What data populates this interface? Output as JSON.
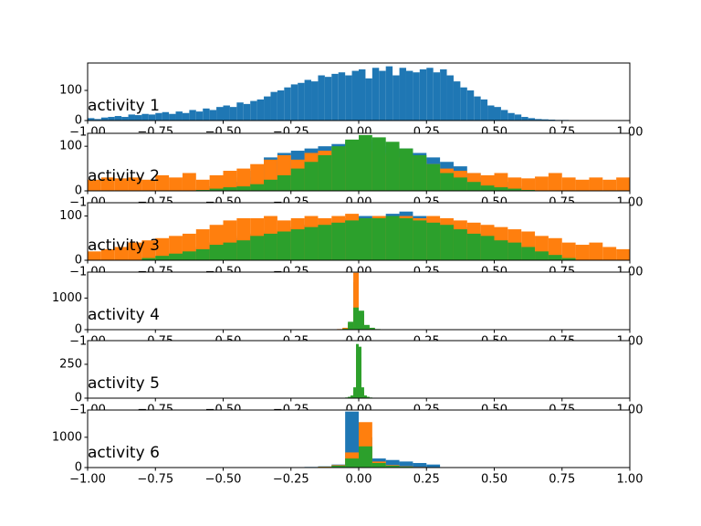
{
  "chart_data": [
    {
      "type": "histogram",
      "annotation": "activity 1",
      "xlim": [
        -1,
        1
      ],
      "ylim": [
        0,
        191
      ],
      "xticks": [
        {
          "value": -1,
          "label": "−1.00"
        },
        {
          "value": -0.75,
          "label": "−0.75"
        },
        {
          "value": -0.5,
          "label": "−0.50"
        },
        {
          "value": -0.25,
          "label": "−0.25"
        },
        {
          "value": 0,
          "label": "0.00"
        },
        {
          "value": 0.25,
          "label": "0.25"
        },
        {
          "value": 0.5,
          "label": "0.50"
        },
        {
          "value": 0.75,
          "label": "0.75"
        },
        {
          "value": 1,
          "label": "1.00"
        }
      ],
      "yticks": [
        0,
        100
      ],
      "bins": [
        -1,
        -0.975,
        -0.95,
        -0.925,
        -0.9,
        -0.875,
        -0.85,
        -0.825,
        -0.8,
        -0.775,
        -0.75,
        -0.725,
        -0.7,
        -0.675,
        -0.65,
        -0.625,
        -0.6,
        -0.575,
        -0.55,
        -0.525,
        -0.5,
        -0.475,
        -0.45,
        -0.425,
        -0.4,
        -0.375,
        -0.35,
        -0.325,
        -0.3,
        -0.275,
        -0.25,
        -0.225,
        -0.2,
        -0.175,
        -0.15,
        -0.125,
        -0.1,
        -0.075,
        -0.05,
        -0.025,
        0,
        0.025,
        0.05,
        0.075,
        0.1,
        0.125,
        0.15,
        0.175,
        0.2,
        0.225,
        0.25,
        0.275,
        0.3,
        0.325,
        0.35,
        0.375,
        0.4,
        0.425,
        0.45,
        0.475,
        0.5,
        0.525,
        0.55,
        0.575,
        0.6,
        0.625,
        0.65,
        0.675,
        0.7,
        0.725,
        0.75,
        0.775,
        0.8
      ],
      "series": [
        {
          "color": "#1f77b4",
          "values": [
            8,
            5,
            10,
            12,
            15,
            12,
            20,
            18,
            22,
            20,
            25,
            28,
            22,
            30,
            25,
            35,
            30,
            40,
            35,
            45,
            50,
            45,
            60,
            55,
            65,
            70,
            80,
            95,
            100,
            110,
            120,
            125,
            135,
            130,
            150,
            145,
            155,
            160,
            150,
            165,
            170,
            140,
            175,
            165,
            180,
            150,
            175,
            165,
            160,
            170,
            175,
            160,
            170,
            150,
            130,
            110,
            100,
            80,
            70,
            50,
            45,
            35,
            25,
            20,
            12,
            8,
            5,
            4,
            3,
            2,
            2,
            1
          ]
        }
      ]
    },
    {
      "type": "histogram",
      "annotation": "activity 2",
      "xlim": [
        -1,
        1
      ],
      "ylim": [
        0,
        129
      ],
      "xticks": [
        {
          "value": -1,
          "label": "−1.00"
        },
        {
          "value": -0.75,
          "label": "−0.75"
        },
        {
          "value": -0.5,
          "label": "−0.50"
        },
        {
          "value": -0.25,
          "label": "−0.25"
        },
        {
          "value": 0,
          "label": "0.00"
        },
        {
          "value": 0.25,
          "label": "0.25"
        },
        {
          "value": 0.5,
          "label": "0.50"
        },
        {
          "value": 0.75,
          "label": "0.75"
        },
        {
          "value": 1,
          "label": "1.00"
        }
      ],
      "yticks": [
        0,
        100
      ],
      "bins": [
        -1,
        -0.95,
        -0.9,
        -0.85,
        -0.8,
        -0.75,
        -0.7,
        -0.65,
        -0.6,
        -0.55,
        -0.5,
        -0.45,
        -0.4,
        -0.35,
        -0.3,
        -0.25,
        -0.2,
        -0.15,
        -0.1,
        -0.05,
        0,
        0.05,
        0.1,
        0.15,
        0.2,
        0.25,
        0.3,
        0.35,
        0.4,
        0.45,
        0.5,
        0.55,
        0.6,
        0.65,
        0.7,
        0.75,
        0.8,
        0.85,
        0.9,
        0.95,
        1
      ],
      "series": [
        {
          "color": "#1f77b4",
          "values": [
            0,
            0,
            0,
            0,
            0,
            0,
            0,
            0,
            5,
            10,
            20,
            30,
            45,
            75,
            85,
            90,
            95,
            100,
            105,
            110,
            115,
            110,
            100,
            95,
            85,
            75,
            65,
            55,
            40,
            30,
            20,
            10,
            5,
            0,
            0,
            0,
            0,
            0,
            0,
            0
          ]
        },
        {
          "color": "#ff7f0e",
          "values": [
            25,
            30,
            28,
            30,
            25,
            35,
            30,
            40,
            25,
            35,
            45,
            50,
            60,
            70,
            80,
            70,
            85,
            90,
            95,
            100,
            90,
            85,
            80,
            75,
            70,
            60,
            50,
            45,
            40,
            35,
            40,
            30,
            28,
            32,
            40,
            30,
            25,
            30,
            25,
            30
          ]
        },
        {
          "color": "#2ca02c",
          "values": [
            0,
            0,
            0,
            0,
            0,
            0,
            0,
            0,
            2,
            5,
            8,
            10,
            15,
            25,
            35,
            50,
            65,
            80,
            100,
            115,
            125,
            120,
            110,
            95,
            80,
            60,
            40,
            30,
            20,
            12,
            8,
            5,
            2,
            0,
            0,
            0,
            0,
            0,
            0,
            0
          ]
        }
      ]
    },
    {
      "type": "histogram",
      "annotation": "activity 3",
      "xlim": [
        -1,
        1
      ],
      "ylim": [
        0,
        130
      ],
      "xticks": [
        {
          "value": -1,
          "label": "−1.00"
        },
        {
          "value": -0.75,
          "label": "−0.75"
        },
        {
          "value": -0.5,
          "label": "−0.50"
        },
        {
          "value": -0.25,
          "label": "−0.25"
        },
        {
          "value": 0,
          "label": "0.00"
        },
        {
          "value": 0.25,
          "label": "0.25"
        },
        {
          "value": 0.5,
          "label": "0.50"
        },
        {
          "value": 0.75,
          "label": "0.75"
        },
        {
          "value": 1,
          "label": "1.00"
        }
      ],
      "yticks": [
        0,
        100
      ],
      "bins": [
        -1,
        -0.95,
        -0.9,
        -0.85,
        -0.8,
        -0.75,
        -0.7,
        -0.65,
        -0.6,
        -0.55,
        -0.5,
        -0.45,
        -0.4,
        -0.35,
        -0.3,
        -0.25,
        -0.2,
        -0.15,
        -0.1,
        -0.05,
        0,
        0.05,
        0.1,
        0.15,
        0.2,
        0.25,
        0.3,
        0.35,
        0.4,
        0.45,
        0.5,
        0.55,
        0.6,
        0.65,
        0.7,
        0.75,
        0.8,
        0.85,
        0.9,
        0.95,
        1
      ],
      "series": [
        {
          "color": "#1f77b4",
          "values": [
            0,
            0,
            0,
            0,
            0,
            0,
            0,
            0,
            30,
            40,
            50,
            55,
            60,
            65,
            70,
            75,
            80,
            85,
            90,
            95,
            100,
            100,
            105,
            110,
            100,
            95,
            85,
            75,
            65,
            55,
            45,
            35,
            25,
            0,
            0,
            0,
            0,
            0,
            0,
            0
          ]
        },
        {
          "color": "#ff7f0e",
          "values": [
            20,
            25,
            30,
            40,
            45,
            50,
            55,
            60,
            70,
            80,
            90,
            95,
            95,
            100,
            90,
            95,
            100,
            95,
            100,
            105,
            95,
            100,
            95,
            100,
            95,
            100,
            95,
            90,
            85,
            80,
            75,
            70,
            65,
            55,
            50,
            40,
            35,
            40,
            30,
            25
          ]
        },
        {
          "color": "#2ca02c",
          "values": [
            0,
            0,
            0,
            0,
            5,
            10,
            15,
            20,
            25,
            35,
            40,
            45,
            55,
            60,
            65,
            70,
            75,
            80,
            85,
            90,
            95,
            95,
            100,
            95,
            90,
            85,
            80,
            70,
            60,
            55,
            45,
            40,
            30,
            20,
            12,
            5,
            0,
            0,
            0,
            0
          ]
        }
      ]
    },
    {
      "type": "histogram",
      "annotation": "activity 4",
      "xlim": [
        -1,
        1
      ],
      "ylim": [
        0,
        1820
      ],
      "xticks": [
        {
          "value": -1,
          "label": "−1.00"
        },
        {
          "value": -0.75,
          "label": "−0.75"
        },
        {
          "value": -0.5,
          "label": "−0.50"
        },
        {
          "value": -0.25,
          "label": "−0.25"
        },
        {
          "value": 0,
          "label": "0.00"
        },
        {
          "value": 0.25,
          "label": "0.25"
        },
        {
          "value": 0.5,
          "label": "0.50"
        },
        {
          "value": 0.75,
          "label": "0.75"
        },
        {
          "value": 1,
          "label": "1.00"
        }
      ],
      "yticks": [
        0,
        1000
      ],
      "bins": [
        -0.1,
        -0.08,
        -0.06,
        -0.04,
        -0.02,
        0,
        0.02,
        0.04,
        0.06,
        0.08,
        0.1
      ],
      "series": [
        {
          "color": "#1f77b4",
          "values": [
            5,
            10,
            20,
            150,
            1500,
            500,
            50,
            20,
            10,
            5
          ]
        },
        {
          "color": "#ff7f0e",
          "values": [
            10,
            20,
            60,
            200,
            1800,
            400,
            100,
            30,
            10,
            5
          ]
        },
        {
          "color": "#2ca02c",
          "values": [
            5,
            10,
            30,
            250,
            700,
            600,
            150,
            60,
            20,
            5
          ]
        }
      ]
    },
    {
      "type": "histogram",
      "annotation": "activity 5",
      "xlim": [
        -1,
        1
      ],
      "ylim": [
        0,
        425
      ],
      "xticks": [
        {
          "value": -1,
          "label": "−1.00"
        },
        {
          "value": -0.75,
          "label": "−0.75"
        },
        {
          "value": -0.5,
          "label": "−0.50"
        },
        {
          "value": -0.25,
          "label": "−0.25"
        },
        {
          "value": 0,
          "label": "0.00"
        },
        {
          "value": 0.25,
          "label": "0.25"
        },
        {
          "value": 0.5,
          "label": "0.50"
        },
        {
          "value": 0.75,
          "label": "0.75"
        },
        {
          "value": 1,
          "label": "1.00"
        }
      ],
      "yticks": [
        0,
        250
      ],
      "bins": [
        -0.05,
        -0.04,
        -0.03,
        -0.02,
        -0.01,
        0,
        0.01,
        0.02,
        0.03,
        0.04,
        0.05
      ],
      "series": [
        {
          "color": "#1f77b4",
          "values": [
            2,
            5,
            10,
            40,
            300,
            280,
            40,
            10,
            5,
            2
          ]
        },
        {
          "color": "#ff7f0e",
          "values": [
            3,
            6,
            12,
            50,
            320,
            300,
            50,
            12,
            6,
            3
          ]
        },
        {
          "color": "#2ca02c",
          "values": [
            5,
            10,
            20,
            80,
            400,
            380,
            80,
            20,
            10,
            5
          ]
        }
      ]
    },
    {
      "type": "histogram",
      "annotation": "activity 6",
      "xlim": [
        -1,
        1
      ],
      "ylim": [
        0,
        1900
      ],
      "xticks": [
        {
          "value": -1,
          "label": "−1.00"
        },
        {
          "value": -0.75,
          "label": "−0.75"
        },
        {
          "value": -0.5,
          "label": "−0.50"
        },
        {
          "value": -0.25,
          "label": "−0.25"
        },
        {
          "value": 0,
          "label": "0.00"
        },
        {
          "value": 0.25,
          "label": "0.25"
        },
        {
          "value": 0.5,
          "label": "0.50"
        },
        {
          "value": 0.75,
          "label": "0.75"
        },
        {
          "value": 1,
          "label": "1.00"
        }
      ],
      "yticks": [
        0,
        1000
      ],
      "bins": [
        -0.25,
        -0.2,
        -0.15,
        -0.1,
        -0.05,
        0,
        0.05,
        0.1,
        0.15,
        0.2,
        0.25,
        0.3
      ],
      "series": [
        {
          "color": "#1f77b4",
          "values": [
            10,
            20,
            40,
            100,
            1850,
            1000,
            300,
            250,
            200,
            150,
            100
          ]
        },
        {
          "color": "#ff7f0e",
          "values": [
            5,
            10,
            30,
            80,
            500,
            1500,
            200,
            80,
            40,
            20,
            10
          ]
        },
        {
          "color": "#2ca02c",
          "values": [
            5,
            10,
            20,
            60,
            300,
            700,
            150,
            60,
            30,
            10,
            5
          ]
        }
      ]
    }
  ]
}
